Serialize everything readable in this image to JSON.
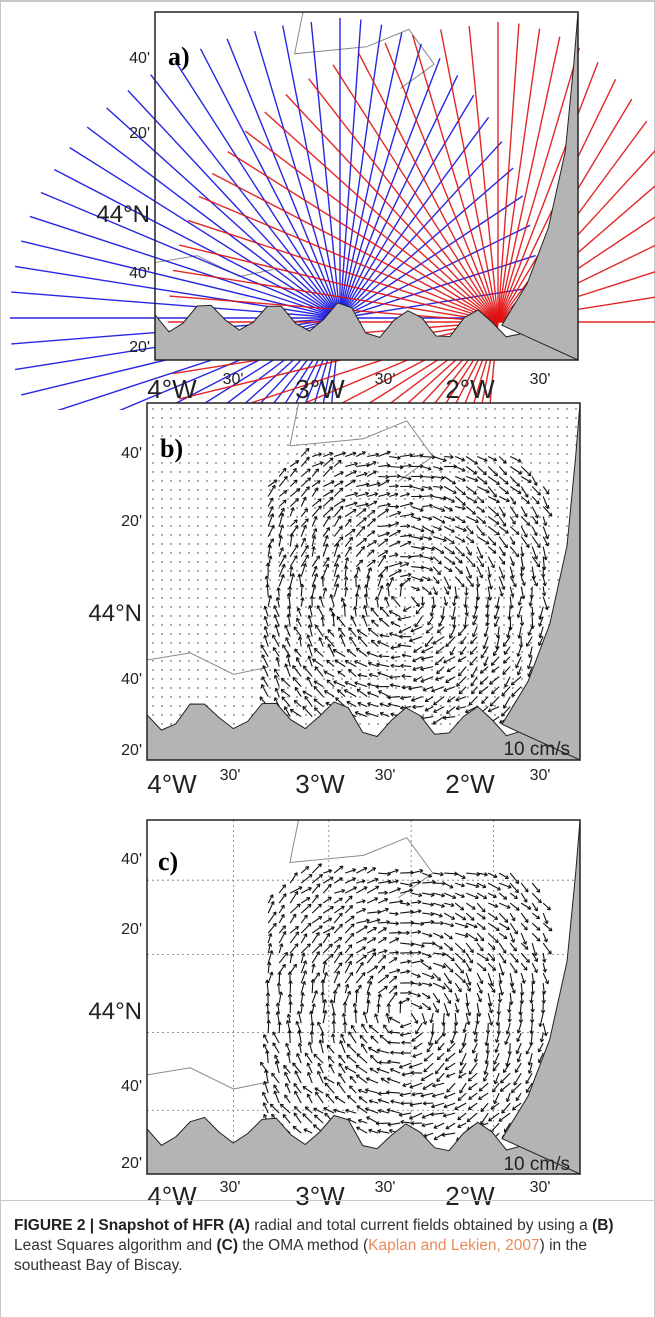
{
  "figure": {
    "panels": [
      {
        "id": "a",
        "label": "a)",
        "lat_ticks": [
          "40'",
          "20'",
          "44°N",
          "40'",
          "20'"
        ],
        "lon_ticks": [
          "4°W",
          "30'",
          "3°W",
          "30'",
          "2°W",
          "30'"
        ],
        "scale_label": "",
        "series_colors": [
          "#1010e0",
          "#e01010"
        ]
      },
      {
        "id": "b",
        "label": "b)",
        "lat_ticks": [
          "40'",
          "20'",
          "44°N",
          "40'",
          "20'"
        ],
        "lon_ticks": [
          "4°W",
          "30'",
          "3°W",
          "30'",
          "2°W",
          "30'"
        ],
        "scale_label": "10 cm/s"
      },
      {
        "id": "c",
        "label": "c)",
        "lat_ticks": [
          "40'",
          "20'",
          "44°N",
          "40'",
          "20'"
        ],
        "lon_ticks": [
          "4°W",
          "30'",
          "3°W",
          "30'",
          "2°W",
          "30'"
        ],
        "scale_label": "10 cm/s"
      }
    ],
    "land_color": "#b4b4b4",
    "isobath_color": "#8a8a8a"
  },
  "caption": {
    "prefix": "FIGURE 2 | Snapshot of HFR ",
    "a_key": "(A)",
    "a_text": " radial and total current fields obtained by using a ",
    "b_key": "(B)",
    "b_text": " Least Squares algorithm and ",
    "c_key": "(C)",
    "c_text": " the OMA method (",
    "ref": "Kaplan and Lekien, 2007",
    "suffix": ") in the southeast Bay of Biscay."
  }
}
